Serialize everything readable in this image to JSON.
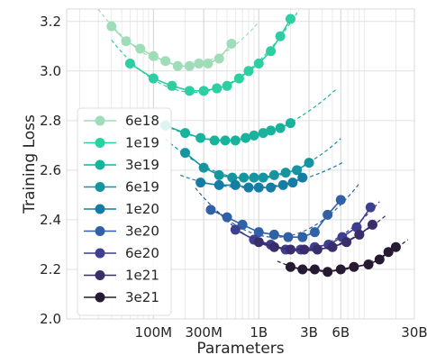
{
  "chart_data": {
    "type": "scatter",
    "xlabel": "Parameters",
    "ylabel": "Training Loss",
    "xscale": "log",
    "xlim": [
      15000000,
      30000000000
    ],
    "ylim": [
      2.0,
      3.25
    ],
    "x_ticks": [
      {
        "value": 100000000,
        "label": "100M"
      },
      {
        "value": 300000000,
        "label": "300M"
      },
      {
        "value": 1000000000,
        "label": "1B"
      },
      {
        "value": 3000000000,
        "label": "3B"
      },
      {
        "value": 6000000000,
        "label": "6B"
      },
      {
        "value": 30000000000,
        "label": "30B"
      }
    ],
    "y_ticks": [
      {
        "value": 2.0,
        "label": "2.0"
      },
      {
        "value": 2.2,
        "label": "2.2"
      },
      {
        "value": 2.4,
        "label": "2.4"
      },
      {
        "value": 2.6,
        "label": "2.6"
      },
      {
        "value": 2.8,
        "label": "2.8"
      },
      {
        "value": 3.0,
        "label": "3.0"
      },
      {
        "value": 3.2,
        "label": "3.2"
      }
    ],
    "grid": true,
    "legend_position": "left",
    "series": [
      {
        "name": "6e18",
        "color": "#9fdcb8",
        "x": [
          40000000,
          55000000,
          75000000,
          100000000,
          130000000,
          170000000,
          220000000,
          270000000,
          330000000,
          420000000,
          550000000
        ],
        "y": [
          3.18,
          3.12,
          3.09,
          3.06,
          3.04,
          3.02,
          3.02,
          3.03,
          3.03,
          3.05,
          3.11
        ],
        "fit": {
          "x": [
            30000000,
            1000000000
          ],
          "y": [
            3.25,
            3.22
          ]
        }
      },
      {
        "name": "1e19",
        "color": "#2bcfa2",
        "x": [
          60000000,
          100000000,
          150000000,
          220000000,
          300000000,
          400000000,
          500000000,
          650000000,
          800000000,
          1000000000,
          1300000000,
          1600000000,
          2000000000
        ],
        "y": [
          3.03,
          2.97,
          2.94,
          2.92,
          2.92,
          2.93,
          2.94,
          2.97,
          3.0,
          3.03,
          3.08,
          3.14,
          3.21
        ],
        "fit": {
          "x": [
            40000000,
            2400000000
          ],
          "y": [
            3.25,
            3.25
          ]
        }
      },
      {
        "name": "3e19",
        "color": "#17b39c",
        "x": [
          130000000,
          200000000,
          280000000,
          380000000,
          480000000,
          600000000,
          750000000,
          900000000,
          1100000000,
          1300000000,
          1600000000,
          2000000000
        ],
        "y": [
          2.78,
          2.75,
          2.73,
          2.72,
          2.72,
          2.72,
          2.73,
          2.74,
          2.75,
          2.76,
          2.77,
          2.79
        ],
        "fit": {
          "x": [
            80000000,
            5500000000
          ],
          "y": [
            2.92,
            2.9
          ]
        }
      },
      {
        "name": "6e19",
        "color": "#1595a0",
        "x": [
          200000000,
          300000000,
          420000000,
          560000000,
          720000000,
          900000000,
          1100000000,
          1400000000,
          1800000000,
          2300000000,
          3000000000
        ],
        "y": [
          2.67,
          2.61,
          2.58,
          2.57,
          2.57,
          2.57,
          2.57,
          2.58,
          2.59,
          2.6,
          2.63
        ],
        "fit": {
          "x": [
            130000000,
            6000000000
          ],
          "y": [
            2.76,
            2.76
          ]
        }
      },
      {
        "name": "1e20",
        "color": "#157da3",
        "x": [
          280000000,
          420000000,
          600000000,
          800000000,
          1000000000,
          1300000000,
          1700000000,
          2100000000,
          2600000000
        ],
        "y": [
          2.55,
          2.54,
          2.54,
          2.53,
          2.53,
          2.53,
          2.54,
          2.55,
          2.57
        ],
        "fit": {
          "x": [
            180000000,
            6500000000
          ],
          "y": [
            2.68,
            2.68
          ]
        }
      },
      {
        "name": "3e20",
        "color": "#3060a5",
        "x": [
          350000000,
          500000000,
          700000000,
          1000000000,
          1400000000,
          1900000000,
          2600000000,
          3400000000,
          4500000000,
          6000000000
        ],
        "y": [
          2.44,
          2.41,
          2.38,
          2.35,
          2.34,
          2.33,
          2.33,
          2.35,
          2.42,
          2.48
        ],
        "fit": {
          "x": [
            250000000,
            9000000000
          ],
          "y": [
            2.55,
            2.55
          ]
        }
      },
      {
        "name": "6e20",
        "color": "#3e3f8e",
        "x": [
          600000000,
          900000000,
          1300000000,
          1800000000,
          2500000000,
          3400000000,
          4600000000,
          6200000000,
          8500000000,
          11500000000
        ],
        "y": [
          2.36,
          2.32,
          2.3,
          2.28,
          2.28,
          2.29,
          2.3,
          2.33,
          2.37,
          2.45
        ],
        "fit": {
          "x": [
            400000000,
            14000000000
          ],
          "y": [
            2.44,
            2.56
          ]
        }
      },
      {
        "name": "1e21",
        "color": "#3a2d6b",
        "x": [
          1000000000,
          1400000000,
          2000000000,
          2700000000,
          3600000000,
          5000000000,
          6800000000,
          9000000000,
          12000000000
        ],
        "y": [
          2.31,
          2.29,
          2.28,
          2.28,
          2.28,
          2.29,
          2.31,
          2.34,
          2.38
        ],
        "fit": {
          "x": [
            700000000,
            16000000000
          ],
          "y": [
            2.37,
            2.45
          ]
        }
      },
      {
        "name": "3e21",
        "color": "#261a33",
        "x": [
          2000000000,
          2600000000,
          3400000000,
          4500000000,
          6000000000,
          8000000000,
          11000000000,
          14000000000,
          17000000000,
          20000000000
        ],
        "y": [
          2.21,
          2.2,
          2.2,
          2.19,
          2.2,
          2.21,
          2.22,
          2.24,
          2.27,
          2.29
        ],
        "fit": {
          "x": [
            1500000000,
            26000000000
          ],
          "y": [
            2.25,
            2.38
          ]
        }
      }
    ]
  }
}
